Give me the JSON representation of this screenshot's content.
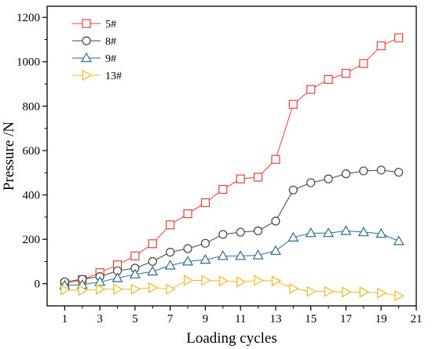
{
  "chart_data": {
    "type": "line",
    "xlabel": "Loading cycles",
    "ylabel": "Pressure /N",
    "xlim": [
      0,
      21
    ],
    "ylim": [
      -100,
      1250
    ],
    "xticks": [
      1,
      3,
      5,
      7,
      9,
      11,
      13,
      15,
      17,
      19,
      21
    ],
    "yticks": [
      0,
      200,
      400,
      600,
      800,
      1000,
      1200
    ],
    "grid": false,
    "legend_position": "top-left",
    "x": [
      1,
      2,
      3,
      4,
      5,
      6,
      7,
      8,
      9,
      10,
      11,
      12,
      13,
      14,
      15,
      16,
      17,
      18,
      19,
      20
    ],
    "series": [
      {
        "name": "5#",
        "color": "#e8413b",
        "marker": "square",
        "values": [
          0,
          18,
          50,
          85,
          125,
          180,
          265,
          315,
          365,
          425,
          472,
          480,
          560,
          808,
          875,
          920,
          948,
          992,
          1072,
          1108
        ]
      },
      {
        "name": "8#",
        "color": "#444444",
        "marker": "circle",
        "values": [
          8,
          20,
          32,
          58,
          70,
          100,
          142,
          158,
          182,
          222,
          232,
          238,
          282,
          422,
          455,
          472,
          495,
          508,
          512,
          502
        ]
      },
      {
        "name": "9#",
        "color": "#2a6f8f",
        "marker": "triangle-up",
        "values": [
          -8,
          -5,
          8,
          25,
          42,
          55,
          82,
          100,
          108,
          125,
          125,
          128,
          148,
          208,
          228,
          228,
          238,
          232,
          225,
          192
        ]
      },
      {
        "name": "13#",
        "color": "#f2b822",
        "marker": "triangle-right",
        "values": [
          -28,
          -30,
          -25,
          -25,
          -25,
          -18,
          -25,
          15,
          15,
          12,
          8,
          15,
          12,
          -22,
          -35,
          -35,
          -38,
          -38,
          -42,
          -55
        ]
      }
    ]
  }
}
